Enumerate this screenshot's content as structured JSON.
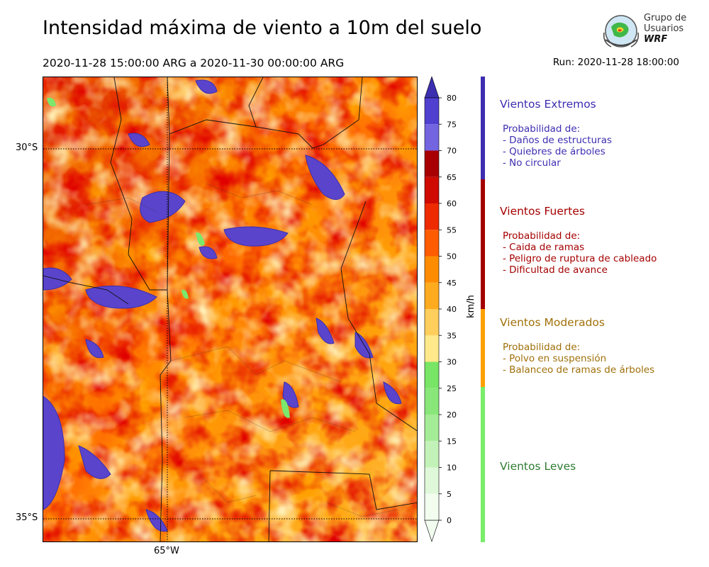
{
  "header": {
    "title": "Intensidad máxima de viento a 10m del suelo",
    "date_range": "2020-11-28 15:00:00 ARG  a  2020-11-30 00:00:00 ARG",
    "run": "Run: 2020-11-28 18:00:00"
  },
  "logo": {
    "line1": "Grupo de",
    "line2": "Usuarios",
    "line3": "WRF"
  },
  "map": {
    "lat_labels": [
      "30°S",
      "35°S"
    ],
    "lon_labels": [
      "65°W"
    ]
  },
  "colorbar": {
    "unit": "km/h",
    "ticks": [
      "0",
      "5",
      "10",
      "15",
      "20",
      "25",
      "30",
      "35",
      "40",
      "45",
      "50",
      "55",
      "60",
      "65",
      "70",
      "75",
      "80"
    ],
    "colors": [
      "#f2fdf0",
      "#dff8d9",
      "#c3f2b8",
      "#a5ec97",
      "#89e77a",
      "#78e566",
      "#ffe98a",
      "#ffce5c",
      "#ffab1f",
      "#ff8c00",
      "#ff5c00",
      "#ee2a00",
      "#cf0a00",
      "#a80000",
      "#7365e0",
      "#5040d0",
      "#3b2fb0"
    ]
  },
  "categories": [
    {
      "title": "Vientos Extremos",
      "color": "#3d2db0",
      "text_color": "#3d2db0",
      "lines": [
        "Probabilidad de:",
        "- Daños de estructuras",
        "- Quiebres de árboles",
        "- No circular"
      ]
    },
    {
      "title": "Vientos Fuertes",
      "color": "#a50000",
      "text_color": "#a50000",
      "lines": [
        "Probabilidad de:",
        "- Caida de ramas",
        "- Peligro de ruptura de cableado",
        "- Dificultad de avance"
      ]
    },
    {
      "title": "Vientos Moderados",
      "color": "#ffa000",
      "text_color": "#a0700a",
      "lines": [
        "Probabilidad de:",
        "- Polvo en suspensión",
        "- Balanceo de ramas de árboles"
      ]
    },
    {
      "title": "Vientos Leves",
      "color": "#78ee6a",
      "text_color": "#2e7d32",
      "lines": []
    }
  ]
}
